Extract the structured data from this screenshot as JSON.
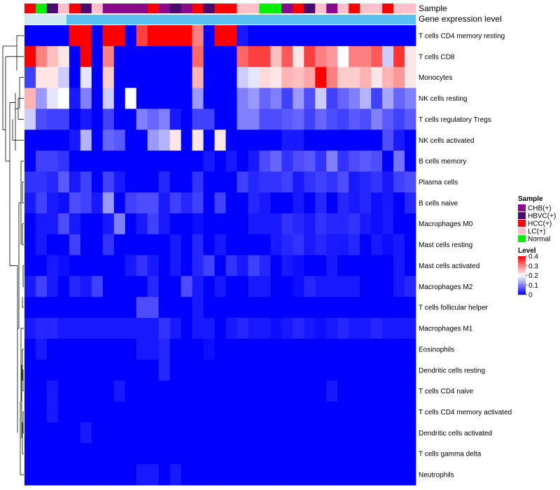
{
  "chart_data": {
    "type": "heatmap",
    "annotation_titles": {
      "sample": "Sample",
      "gene_expression": "Gene expression level"
    },
    "sample_groups": [
      "CHB(+)",
      "HBVC(+)",
      "HCC(+)",
      "LC(+)",
      "Normal"
    ],
    "sample_colors": {
      "CHB(+)": "#8B0A8B",
      "HBVC(+)": "#4B0A6E",
      "HCC(+)": "#FF0000",
      "LC(+)": "#FFC0CB",
      "Normal": "#00EE00"
    },
    "sample_annotation": [
      "HCC(+)",
      "Normal",
      "HBVC(+)",
      "LC(+)",
      "HCC(+)",
      "HBVC(+)",
      "LC(+)",
      "CHB(+)",
      "CHB(+)",
      "CHB(+)",
      "CHB(+)",
      "HCC(+)",
      "CHB(+)",
      "HBVC(+)",
      "CHB(+)",
      "HCC(+)",
      "HBVC(+)",
      "HCC(+)",
      "HCC(+)",
      "LC(+)",
      "LC(+)",
      "Normal",
      "Normal",
      "CHB(+)",
      "HCC(+)",
      "HBVC(+)",
      "LC(+)",
      "CHB(+)",
      "LC(+)",
      "HCC(+)",
      "LC(+)",
      "LC(+)",
      "HCC(+)",
      "LC(+)",
      "LC(+)"
    ],
    "gene_expression_colors": {
      "main": "#5BC0F0",
      "left": "#D0E8F4"
    },
    "rows": [
      "T cells CD4 memory resting",
      "T cells CD8",
      "Monocytes",
      "NK cells resting",
      "T cells regulatory  Tregs",
      "NK cells activated",
      "B cells memory",
      "Plasma cells",
      "B cells naive",
      "Macrophages M0",
      "Mast cells resting",
      "Mast cells activated",
      "Macrophages M2",
      "T cells follicular helper",
      "Macrophages M1",
      "Eosinophils",
      "Dendritic cells resting",
      "T cells CD4 naive",
      "T cells CD4 memory activated",
      "Dendritic cells activated",
      "T cells gamma delta",
      "Neutrophils"
    ],
    "values": [
      [
        0,
        0,
        0,
        0,
        0.4,
        0.4,
        0,
        0.4,
        0.4,
        0,
        0.35,
        0.4,
        0.4,
        0.4,
        0.4,
        0.3,
        0,
        0.4,
        0.4,
        0.02,
        0,
        0,
        0,
        0,
        0,
        0,
        0,
        0,
        0,
        0,
        0,
        0,
        0,
        0,
        0
      ],
      [
        0.4,
        0.3,
        0.25,
        0.22,
        0,
        0.4,
        0,
        0.3,
        0,
        0,
        0,
        0,
        0,
        0,
        0,
        0.32,
        0,
        0,
        0,
        0.32,
        0.35,
        0.35,
        0.25,
        0.33,
        0.22,
        0.35,
        0.3,
        0.28,
        0.2,
        0.3,
        0.3,
        0.33,
        0.16,
        0.36,
        0.22
      ],
      [
        0.05,
        0.22,
        0.22,
        0.16,
        0,
        0.18,
        0,
        0.24,
        0,
        0,
        0,
        0,
        0,
        0,
        0,
        0.26,
        0,
        0,
        0,
        0.16,
        0.18,
        0.23,
        0.22,
        0.26,
        0.25,
        0.27,
        0.4,
        0.3,
        0.24,
        0.24,
        0.26,
        0.22,
        0.26,
        0.28,
        0.22
      ],
      [
        0.26,
        0.12,
        0.18,
        0.2,
        0.02,
        0.1,
        0,
        0.16,
        0,
        0.2,
        0,
        0,
        0,
        0,
        0,
        0.12,
        0,
        0,
        0,
        0.1,
        0.12,
        0.08,
        0.1,
        0.05,
        0.12,
        0.06,
        0.16,
        0.05,
        0.08,
        0.1,
        0.14,
        0.05,
        0.13,
        0.08,
        0.1
      ],
      [
        0.16,
        0.06,
        0.05,
        0.05,
        0,
        0.02,
        0,
        0.05,
        0,
        0,
        0.1,
        0.08,
        0.1,
        0.02,
        0,
        0.05,
        0.05,
        0,
        0,
        0.1,
        0.1,
        0.06,
        0.06,
        0.07,
        0.08,
        0.05,
        0.08,
        0.06,
        0.05,
        0.07,
        0.06,
        0.1,
        0.07,
        0.05,
        0.07
      ],
      [
        0,
        0,
        0,
        0,
        0.02,
        0.14,
        0,
        0.08,
        0.07,
        0,
        0,
        0.12,
        0.14,
        0.22,
        0,
        0.22,
        0,
        0.22,
        0,
        0,
        0,
        0,
        0,
        0.02,
        0.02,
        0,
        0,
        0,
        0,
        0,
        0,
        0,
        0.06,
        0.02,
        0
      ],
      [
        0,
        0.05,
        0.05,
        0.04,
        0,
        0,
        0,
        0,
        0,
        0,
        0,
        0,
        0,
        0,
        0,
        0,
        0.02,
        0,
        0.02,
        0,
        0.02,
        0.06,
        0.08,
        0.04,
        0.06,
        0.07,
        0.04,
        0.1,
        0.04,
        0.06,
        0.07,
        0.06,
        0,
        0.09,
        0
      ],
      [
        0.04,
        0.04,
        0.03,
        0.07,
        0.02,
        0.05,
        0,
        0.05,
        0.02,
        0,
        0,
        0,
        0.03,
        0,
        0,
        0.04,
        0,
        0,
        0,
        0.05,
        0.03,
        0.04,
        0.04,
        0.05,
        0.02,
        0.04,
        0.05,
        0.04,
        0.06,
        0.02,
        0.03,
        0.04,
        0.02,
        0.05,
        0.06
      ],
      [
        0.02,
        0.05,
        0.02,
        0.01,
        0.06,
        0.05,
        0.02,
        0.12,
        0,
        0.05,
        0.06,
        0.06,
        0.02,
        0.05,
        0.03,
        0.05,
        0,
        0.05,
        0,
        0,
        0.03,
        0.02,
        0,
        0,
        0.02,
        0,
        0.03,
        0,
        0.03,
        0.02,
        0.03,
        0.01,
        0.02,
        0,
        0.03
      ],
      [
        0,
        0.02,
        0.02,
        0.06,
        0.02,
        0,
        0,
        0.02,
        0.1,
        0,
        0.02,
        0.05,
        0.02,
        0,
        0,
        0.01,
        0,
        0,
        0,
        0,
        0.02,
        0.02,
        0.02,
        0.04,
        0.03,
        0.02,
        0.04,
        0.03,
        0.03,
        0.04,
        0.02,
        0.01,
        0.02,
        0,
        0
      ],
      [
        0,
        0.02,
        0,
        0,
        0.05,
        0,
        0,
        0.04,
        0,
        0,
        0,
        0,
        0,
        0.02,
        0,
        0.03,
        0,
        0.02,
        0,
        0,
        0,
        0,
        0.02,
        0.03,
        0.04,
        0.02,
        0.03,
        0.02,
        0.02,
        0.03,
        0,
        0.02,
        0.01,
        0.02,
        0
      ],
      [
        0,
        0,
        0.02,
        0.01,
        0,
        0,
        0,
        0,
        0,
        0.02,
        0.04,
        0.02,
        0,
        0.02,
        0,
        0.03,
        0.05,
        0,
        0.04,
        0.02,
        0.05,
        0.03,
        0,
        0.02,
        0.01,
        0,
        0,
        0.02,
        0,
        0,
        0,
        0,
        0,
        0.02,
        0
      ],
      [
        0.02,
        0.05,
        0.02,
        0,
        0.03,
        0.02,
        0.05,
        0,
        0,
        0,
        0,
        0.03,
        0,
        0,
        0.06,
        0.02,
        0,
        0.02,
        0,
        0,
        0.02,
        0.02,
        0,
        0,
        0.01,
        0.03,
        0.02,
        0.02,
        0.02,
        0.02,
        0,
        0,
        0,
        0.02,
        0.03
      ],
      [
        0,
        0,
        0,
        0,
        0,
        0,
        0,
        0,
        0,
        0,
        0.06,
        0.06,
        0,
        0,
        0,
        0.02,
        0,
        0,
        0,
        0,
        0,
        0,
        0,
        0,
        0,
        0,
        0,
        0,
        0,
        0,
        0,
        0,
        0,
        0,
        0
      ],
      [
        0.02,
        0.03,
        0.03,
        0.02,
        0.02,
        0.02,
        0.02,
        0.02,
        0.02,
        0.02,
        0.02,
        0.02,
        0.04,
        0.02,
        0,
        0.02,
        0.02,
        0,
        0.02,
        0.03,
        0.02,
        0.02,
        0.01,
        0.02,
        0.03,
        0.02,
        0.01,
        0.02,
        0.03,
        0.02,
        0.02,
        0.03,
        0.02,
        0.02,
        0.02
      ],
      [
        0,
        0.02,
        0,
        0,
        0,
        0,
        0,
        0,
        0,
        0,
        0.02,
        0.02,
        0.03,
        0,
        0,
        0,
        0.01,
        0,
        0,
        0,
        0,
        0,
        0,
        0,
        0,
        0,
        0,
        0,
        0,
        0,
        0,
        0,
        0,
        0,
        0
      ],
      [
        0,
        0,
        0,
        0,
        0,
        0,
        0,
        0,
        0,
        0,
        0,
        0,
        0.03,
        0,
        0,
        0,
        0,
        0,
        0,
        0,
        0,
        0,
        0,
        0,
        0,
        0,
        0,
        0,
        0,
        0,
        0,
        0,
        0,
        0,
        0
      ],
      [
        0,
        0,
        0.02,
        0,
        0,
        0,
        0,
        0,
        0.02,
        0,
        0,
        0,
        0,
        0,
        0,
        0,
        0,
        0,
        0,
        0,
        0,
        0,
        0,
        0,
        0,
        0,
        0,
        0.02,
        0,
        0,
        0,
        0,
        0,
        0,
        0
      ],
      [
        0,
        0,
        0.02,
        0,
        0,
        0,
        0,
        0,
        0,
        0,
        0,
        0,
        0,
        0,
        0,
        0,
        0,
        0,
        0,
        0,
        0,
        0,
        0,
        0,
        0,
        0,
        0,
        0,
        0,
        0,
        0,
        0,
        0,
        0,
        0
      ],
      [
        0,
        0,
        0,
        0,
        0,
        0.02,
        0,
        0,
        0,
        0,
        0,
        0,
        0,
        0,
        0,
        0,
        0,
        0,
        0,
        0,
        0,
        0,
        0,
        0,
        0,
        0,
        0,
        0,
        0,
        0,
        0,
        0,
        0,
        0,
        0
      ],
      [
        0,
        0,
        0,
        0,
        0,
        0,
        0,
        0,
        0,
        0,
        0,
        0,
        0,
        0,
        0,
        0,
        0,
        0,
        0,
        0,
        0,
        0,
        0,
        0,
        0,
        0,
        0,
        0,
        0,
        0,
        0,
        0,
        0,
        0,
        0
      ],
      [
        0,
        0,
        0,
        0,
        0,
        0,
        0,
        0,
        0,
        0,
        0.02,
        0.02,
        0,
        0.02,
        0,
        0,
        0,
        0,
        0,
        0,
        0,
        0,
        0,
        0,
        0,
        0,
        0,
        0,
        0,
        0,
        0,
        0,
        0,
        0,
        0
      ]
    ],
    "color_scale": {
      "breaks": [
        0,
        0.2,
        0.4
      ],
      "colors": [
        "#0000FF",
        "#FFFFFF",
        "#FF0000"
      ]
    },
    "legend": {
      "sample_title": "Sample",
      "level_title": "Level",
      "level_ticks": [
        "0.4",
        "0.3",
        "0.2",
        "0.1",
        "0"
      ],
      "level_tick_values": [
        0.4,
        0.3,
        0.2,
        0.1,
        0
      ],
      "placement": "right"
    }
  }
}
